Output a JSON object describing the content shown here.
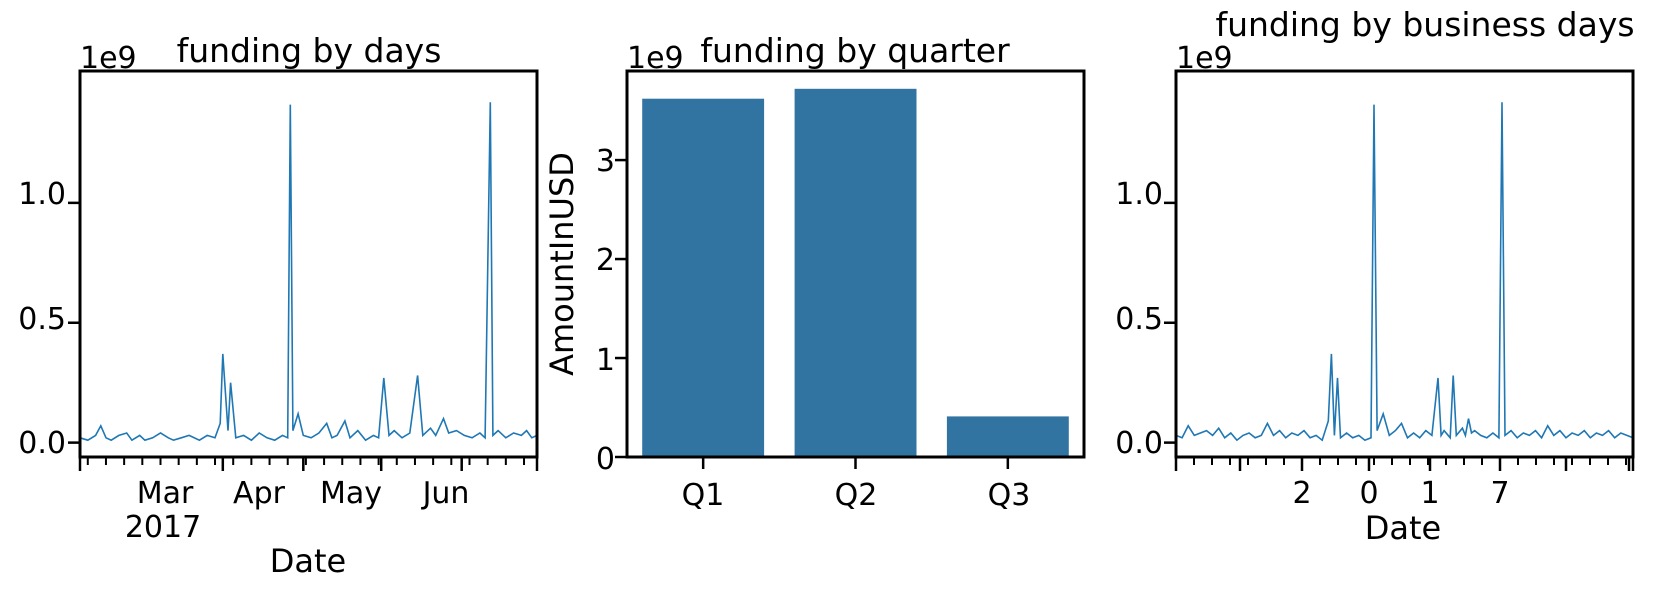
{
  "chart_data": [
    {
      "type": "line",
      "title": "funding by days",
      "xlabel": "Date",
      "ylabel": "",
      "offset_text": "1e9",
      "x_tick_labels": [
        "Mar",
        "Apr",
        "May",
        "Jun"
      ],
      "x_tick_sublabel": "2017",
      "y_tick_labels": [
        "0.0",
        "0.5",
        "1.0"
      ],
      "ylim": [
        -0.06,
        1.55
      ],
      "x_start": "2017-01-05",
      "x_end": "2017-06-30",
      "color": "#1f77b4",
      "series": [
        {
          "name": "",
          "points": [
            [
              "2017-01-05",
              0.02
            ],
            [
              "2017-01-08",
              0.01
            ],
            [
              "2017-01-11",
              0.03
            ],
            [
              "2017-01-13",
              0.07
            ],
            [
              "2017-01-15",
              0.02
            ],
            [
              "2017-01-17",
              0.01
            ],
            [
              "2017-01-20",
              0.03
            ],
            [
              "2017-01-23",
              0.04
            ],
            [
              "2017-01-25",
              0.01
            ],
            [
              "2017-01-28",
              0.03
            ],
            [
              "2017-01-30",
              0.01
            ],
            [
              "2017-02-02",
              0.02
            ],
            [
              "2017-02-05",
              0.04
            ],
            [
              "2017-02-08",
              0.02
            ],
            [
              "2017-02-10",
              0.01
            ],
            [
              "2017-02-13",
              0.02
            ],
            [
              "2017-02-16",
              0.03
            ],
            [
              "2017-02-20",
              0.01
            ],
            [
              "2017-02-23",
              0.03
            ],
            [
              "2017-02-26",
              0.02
            ],
            [
              "2017-02-28",
              0.08
            ],
            [
              "2017-03-01",
              0.37
            ],
            [
              "2017-03-03",
              0.05
            ],
            [
              "2017-03-04",
              0.25
            ],
            [
              "2017-03-06",
              0.02
            ],
            [
              "2017-03-09",
              0.03
            ],
            [
              "2017-03-12",
              0.01
            ],
            [
              "2017-03-15",
              0.04
            ],
            [
              "2017-03-18",
              0.02
            ],
            [
              "2017-03-21",
              0.01
            ],
            [
              "2017-03-24",
              0.03
            ],
            [
              "2017-03-26",
              0.02
            ],
            [
              "2017-03-27",
              1.41
            ],
            [
              "2017-03-28",
              0.05
            ],
            [
              "2017-03-30",
              0.12
            ],
            [
              "2017-04-01",
              0.03
            ],
            [
              "2017-04-04",
              0.02
            ],
            [
              "2017-04-07",
              0.04
            ],
            [
              "2017-04-10",
              0.08
            ],
            [
              "2017-04-12",
              0.02
            ],
            [
              "2017-04-14",
              0.03
            ],
            [
              "2017-04-17",
              0.09
            ],
            [
              "2017-04-19",
              0.02
            ],
            [
              "2017-04-22",
              0.05
            ],
            [
              "2017-04-25",
              0.01
            ],
            [
              "2017-04-28",
              0.03
            ],
            [
              "2017-04-30",
              0.02
            ],
            [
              "2017-05-02",
              0.27
            ],
            [
              "2017-05-04",
              0.03
            ],
            [
              "2017-05-06",
              0.05
            ],
            [
              "2017-05-09",
              0.02
            ],
            [
              "2017-05-12",
              0.04
            ],
            [
              "2017-05-15",
              0.28
            ],
            [
              "2017-05-17",
              0.03
            ],
            [
              "2017-05-20",
              0.06
            ],
            [
              "2017-05-22",
              0.03
            ],
            [
              "2017-05-25",
              0.1
            ],
            [
              "2017-05-27",
              0.04
            ],
            [
              "2017-05-30",
              0.05
            ],
            [
              "2017-06-02",
              0.03
            ],
            [
              "2017-06-05",
              0.02
            ],
            [
              "2017-06-08",
              0.04
            ],
            [
              "2017-06-10",
              0.02
            ],
            [
              "2017-06-12",
              1.42
            ],
            [
              "2017-06-13",
              0.03
            ],
            [
              "2017-06-15",
              0.05
            ],
            [
              "2017-06-18",
              0.02
            ],
            [
              "2017-06-21",
              0.04
            ],
            [
              "2017-06-24",
              0.03
            ],
            [
              "2017-06-26",
              0.05
            ],
            [
              "2017-06-28",
              0.02
            ],
            [
              "2017-06-30",
              0.03
            ]
          ]
        }
      ]
    },
    {
      "type": "bar",
      "title": "funding by quarter",
      "xlabel": "",
      "ylabel": "AmountInUSD",
      "offset_text": "1e9",
      "categories": [
        "Q1",
        "Q2",
        "Q3"
      ],
      "values": [
        3.62,
        3.72,
        0.41
      ],
      "y_tick_labels": [
        "0",
        "1",
        "2",
        "3"
      ],
      "ylim": [
        0,
        3.9
      ],
      "color": "#3274a1"
    },
    {
      "type": "line",
      "title": "funding by business days",
      "xlabel": "Date",
      "ylabel": "",
      "offset_text": "1e9",
      "x_tick_labels": [
        "2",
        "0",
        "1",
        "7"
      ],
      "y_tick_labels": [
        "0.0",
        "0.5",
        "1.0"
      ],
      "ylim": [
        -0.06,
        1.55
      ],
      "color": "#1f77b4",
      "series": [
        {
          "name": "",
          "points": [
            [
              0,
              0.03
            ],
            [
              2,
              0.02
            ],
            [
              4,
              0.07
            ],
            [
              6,
              0.03
            ],
            [
              8,
              0.04
            ],
            [
              10,
              0.05
            ],
            [
              12,
              0.03
            ],
            [
              14,
              0.06
            ],
            [
              16,
              0.02
            ],
            [
              18,
              0.04
            ],
            [
              20,
              0.01
            ],
            [
              22,
              0.03
            ],
            [
              24,
              0.04
            ],
            [
              26,
              0.02
            ],
            [
              28,
              0.03
            ],
            [
              30,
              0.08
            ],
            [
              32,
              0.03
            ],
            [
              34,
              0.05
            ],
            [
              36,
              0.02
            ],
            [
              38,
              0.04
            ],
            [
              40,
              0.03
            ],
            [
              42,
              0.05
            ],
            [
              44,
              0.02
            ],
            [
              46,
              0.03
            ],
            [
              48,
              0.01
            ],
            [
              50,
              0.09
            ],
            [
              51,
              0.37
            ],
            [
              52,
              0.03
            ],
            [
              53,
              0.27
            ],
            [
              54,
              0.02
            ],
            [
              56,
              0.04
            ],
            [
              58,
              0.02
            ],
            [
              60,
              0.03
            ],
            [
              62,
              0.01
            ],
            [
              64,
              0.02
            ],
            [
              65,
              1.41
            ],
            [
              66,
              0.05
            ],
            [
              68,
              0.12
            ],
            [
              70,
              0.03
            ],
            [
              72,
              0.05
            ],
            [
              74,
              0.08
            ],
            [
              76,
              0.02
            ],
            [
              78,
              0.04
            ],
            [
              80,
              0.02
            ],
            [
              82,
              0.05
            ],
            [
              84,
              0.03
            ],
            [
              86,
              0.27
            ],
            [
              87,
              0.03
            ],
            [
              88,
              0.05
            ],
            [
              90,
              0.02
            ],
            [
              91,
              0.28
            ],
            [
              92,
              0.03
            ],
            [
              94,
              0.06
            ],
            [
              95,
              0.03
            ],
            [
              96,
              0.1
            ],
            [
              97,
              0.04
            ],
            [
              98,
              0.05
            ],
            [
              100,
              0.03
            ],
            [
              102,
              0.02
            ],
            [
              104,
              0.04
            ],
            [
              106,
              0.02
            ],
            [
              107,
              1.42
            ],
            [
              108,
              0.03
            ],
            [
              110,
              0.05
            ],
            [
              112,
              0.02
            ],
            [
              114,
              0.04
            ],
            [
              116,
              0.03
            ],
            [
              118,
              0.05
            ],
            [
              120,
              0.02
            ],
            [
              122,
              0.07
            ],
            [
              124,
              0.03
            ],
            [
              126,
              0.05
            ],
            [
              128,
              0.02
            ],
            [
              130,
              0.04
            ],
            [
              132,
              0.03
            ],
            [
              134,
              0.05
            ],
            [
              136,
              0.02
            ],
            [
              138,
              0.04
            ],
            [
              140,
              0.03
            ],
            [
              142,
              0.05
            ],
            [
              144,
              0.02
            ],
            [
              146,
              0.04
            ],
            [
              148,
              0.03
            ],
            [
              150,
              0.02
            ]
          ]
        }
      ]
    }
  ]
}
